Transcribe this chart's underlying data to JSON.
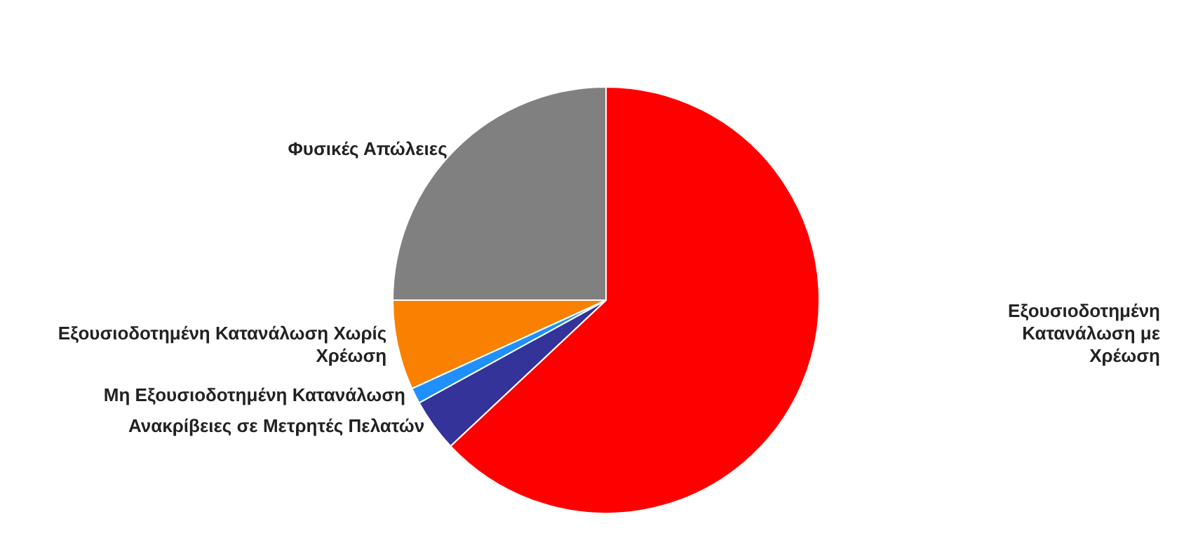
{
  "chart_data": {
    "type": "pie",
    "categories": [
      "Εξουσιοδοτημένη Κατανάλωση με Χρέωση",
      "Ανακρίβειες σε Μετρητές Πελατών",
      "Μη Εξουσιοδοτημένη Κατανάλωση",
      "Εξουσιοδοτημένη Κατανάλωση Χωρίς Χρέωση",
      "Φυσικές Απώλειες"
    ],
    "values": [
      63,
      4,
      1.2,
      6.8,
      25
    ],
    "colors": [
      "#ff0000",
      "#333399",
      "#1e90ff",
      "#f98000",
      "#808080"
    ],
    "legend": false
  }
}
